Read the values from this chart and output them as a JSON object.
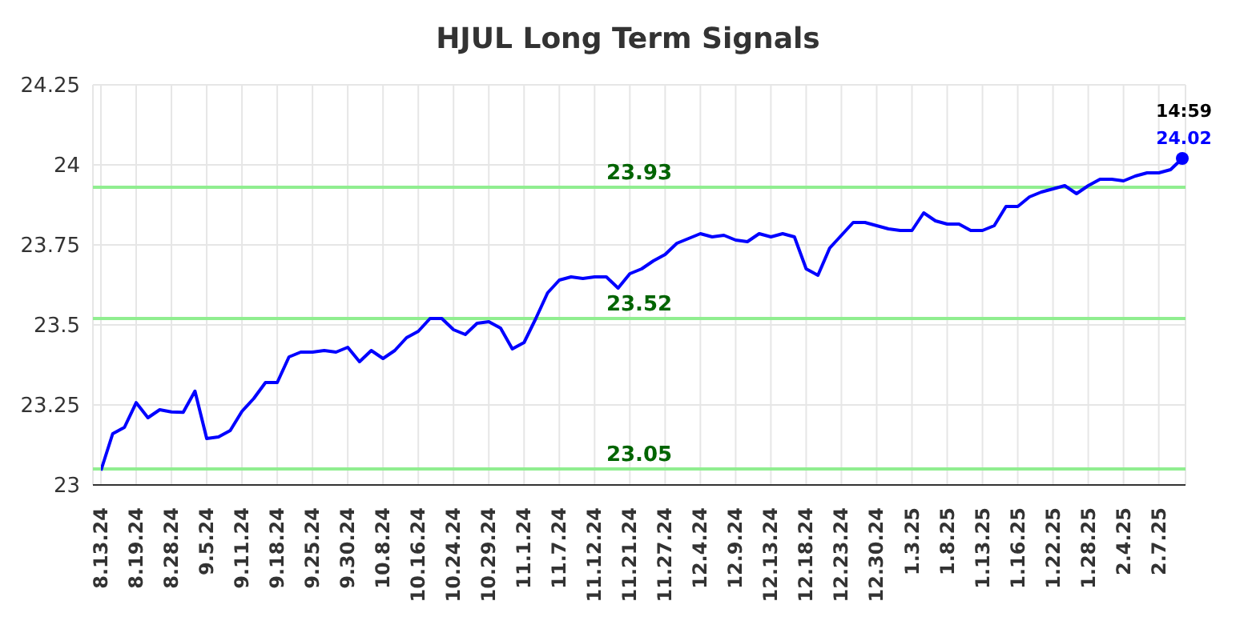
{
  "chart_data": {
    "type": "line",
    "title": "HJUL Long Term Signals",
    "categories": [
      "8.13.24",
      null,
      null,
      "8.19.24",
      null,
      null,
      "8.28.24",
      null,
      null,
      "9.5.24",
      null,
      null,
      "9.11.24",
      null,
      null,
      "9.18.24",
      null,
      null,
      "9.25.24",
      null,
      null,
      "9.30.24",
      null,
      null,
      "10.8.24",
      null,
      null,
      "10.16.24",
      null,
      null,
      "10.24.24",
      null,
      null,
      "10.29.24",
      null,
      null,
      "11.1.24",
      null,
      null,
      "11.7.24",
      null,
      null,
      "11.12.24",
      null,
      null,
      "11.21.24",
      null,
      null,
      "11.27.24",
      null,
      null,
      "12.4.24",
      null,
      null,
      "12.9.24",
      null,
      null,
      "12.13.24",
      null,
      null,
      "12.18.24",
      null,
      null,
      "12.23.24",
      null,
      null,
      "12.30.24",
      null,
      null,
      "1.3.25",
      null,
      null,
      "1.8.25",
      null,
      null,
      "1.13.25",
      null,
      null,
      "1.16.25",
      null,
      null,
      "1.22.25",
      null,
      null,
      "1.28.25",
      null,
      null,
      "2.4.25",
      null,
      null,
      "2.7.25",
      null,
      null
    ],
    "series": [
      {
        "color": "#0000ff",
        "values": [
          23.045,
          23.16,
          23.18,
          23.257,
          23.21,
          23.235,
          23.228,
          23.227,
          23.293,
          23.145,
          23.15,
          23.17,
          23.23,
          23.27,
          23.32,
          23.32,
          23.4,
          23.415,
          23.415,
          23.42,
          23.415,
          23.43,
          23.385,
          23.42,
          23.395,
          23.42,
          23.46,
          23.48,
          23.52,
          23.52,
          23.485,
          23.47,
          23.505,
          23.51,
          23.49,
          23.425,
          23.445,
          23.52,
          23.6,
          23.64,
          23.65,
          23.645,
          23.65,
          23.65,
          23.615,
          23.66,
          23.675,
          23.7,
          23.72,
          23.755,
          23.77,
          23.785,
          23.775,
          23.78,
          23.765,
          23.76,
          23.785,
          23.775,
          23.785,
          23.775,
          23.675,
          23.655,
          23.74,
          23.78,
          23.82,
          23.82,
          23.81,
          23.8,
          23.795,
          23.795,
          23.85,
          23.825,
          23.815,
          23.815,
          23.795,
          23.795,
          23.81,
          23.87,
          23.87,
          23.9,
          23.915,
          23.925,
          23.935,
          23.91,
          23.935,
          23.955,
          23.955,
          23.95,
          23.965,
          23.975,
          23.975,
          23.985,
          24.02
        ],
        "value_labels": [
          null,
          null,
          null,
          null,
          null,
          null,
          null,
          null,
          null,
          null,
          null,
          null,
          null,
          null,
          null,
          null,
          null,
          null,
          null,
          null,
          null,
          null,
          null,
          null,
          null,
          null,
          null,
          null,
          null,
          null,
          null,
          null,
          null,
          null,
          null,
          null,
          null,
          null,
          null,
          null,
          null,
          null,
          null,
          null,
          null,
          null,
          null,
          null,
          null,
          null,
          null,
          null,
          null,
          null,
          null,
          null,
          null,
          null,
          null,
          null,
          null,
          null,
          null,
          null,
          null,
          null,
          null,
          null,
          null,
          null,
          null,
          null,
          null,
          null,
          null,
          null,
          null,
          null,
          null,
          null,
          null,
          null,
          null,
          null,
          null,
          null,
          null,
          null,
          null,
          null,
          null,
          null,
          "24.02"
        ]
      }
    ],
    "annotations": [
      "14:59"
    ],
    "ylim": [
      23,
      24.25
    ],
    "yticks": [
      23,
      23.25,
      23.5,
      23.75,
      24,
      24.25
    ],
    "grid": true,
    "marker": "none",
    "line_style": "solid",
    "ref_lines": [
      {
        "axis": "y",
        "value": 23.93,
        "label": "23.93",
        "color": "#90ee90"
      },
      {
        "axis": "y",
        "value": 23.52,
        "label": "23.52",
        "color": "#90ee90"
      },
      {
        "axis": "y",
        "value": 23.05,
        "label": "23.05",
        "color": "#90ee90"
      }
    ]
  }
}
